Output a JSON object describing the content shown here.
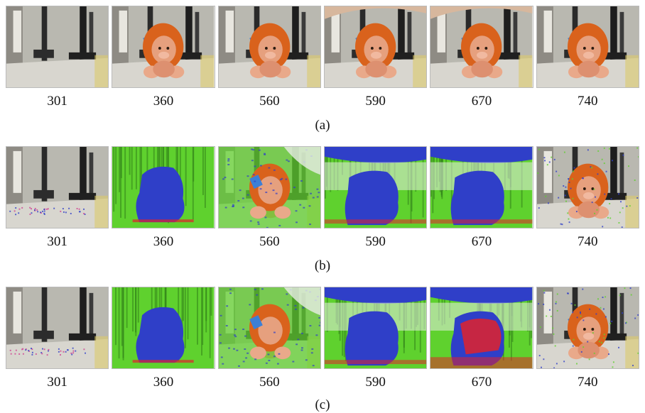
{
  "figure": {
    "rows": [
      {
        "caption": "(a)",
        "mode": "original",
        "frames": [
          {
            "label": "301",
            "toy": false,
            "hand": false,
            "overlay": "none"
          },
          {
            "label": "360",
            "toy": true,
            "hand": false,
            "overlay": "none"
          },
          {
            "label": "560",
            "toy": true,
            "hand": false,
            "overlay": "none"
          },
          {
            "label": "590",
            "toy": true,
            "hand": true,
            "overlay": "none"
          },
          {
            "label": "670",
            "toy": true,
            "hand": true,
            "overlay": "none"
          },
          {
            "label": "740",
            "toy": true,
            "hand": false,
            "overlay": "none"
          }
        ]
      },
      {
        "caption": "(b)",
        "mode": "segmented",
        "frames": [
          {
            "label": "301",
            "toy": false,
            "hand": false,
            "overlay": "speckle"
          },
          {
            "label": "360",
            "toy": true,
            "hand": false,
            "overlay": "blob"
          },
          {
            "label": "560",
            "toy": true,
            "hand": false,
            "overlay": "partial"
          },
          {
            "label": "590",
            "toy": true,
            "hand": true,
            "overlay": "hand"
          },
          {
            "label": "670",
            "toy": true,
            "hand": true,
            "overlay": "hand"
          },
          {
            "label": "740",
            "toy": true,
            "hand": false,
            "overlay": "light"
          }
        ]
      },
      {
        "caption": "(c)",
        "mode": "segmented",
        "frames": [
          {
            "label": "301",
            "toy": false,
            "hand": false,
            "overlay": "speckle"
          },
          {
            "label": "360",
            "toy": true,
            "hand": false,
            "overlay": "blob"
          },
          {
            "label": "560",
            "toy": true,
            "hand": false,
            "overlay": "partial"
          },
          {
            "label": "590",
            "toy": true,
            "hand": true,
            "overlay": "hand"
          },
          {
            "label": "670",
            "toy": true,
            "hand": true,
            "overlay": "hand-red"
          },
          {
            "label": "740",
            "toy": true,
            "hand": false,
            "overlay": "light"
          }
        ]
      }
    ]
  },
  "colors": {
    "background_wall": "#b9b8b0",
    "floor": "#d8d6cf",
    "toy_mane": "#d9621c",
    "toy_face": "#e6a07e",
    "seg_green": "#5fd12e",
    "seg_blue": "#2f3fc8",
    "seg_red": "#e0222c",
    "seg_white": "#e8ece6"
  }
}
